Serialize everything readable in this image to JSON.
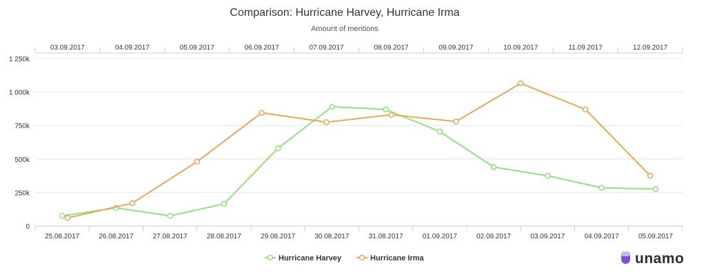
{
  "chart_data": {
    "type": "line",
    "title": "Comparison: Hurricane Harvey, Hurricane Irma",
    "subtitle": "Amount of mentions",
    "xlabel": "",
    "ylabel": "",
    "ylim": [
      0,
      1250000
    ],
    "y_ticks": [
      {
        "value": 0,
        "label": "0"
      },
      {
        "value": 250000,
        "label": "250k"
      },
      {
        "value": 500000,
        "label": "500k"
      },
      {
        "value": 750000,
        "label": "750k"
      },
      {
        "value": 1000000,
        "label": "1 000k"
      },
      {
        "value": 1250000,
        "label": "1 250k"
      }
    ],
    "grid": true,
    "legend_position": "bottom-center",
    "series": [
      {
        "name": "Hurricane Harvey",
        "color": "#90e07e",
        "x": [
          "25.08.2017",
          "26.08.2017",
          "27.08.2017",
          "28.08.2017",
          "29.08.2017",
          "30.08.2017",
          "31.08.2017",
          "01.09.2017",
          "02.09.2017",
          "03.09.2017",
          "04.09.2017",
          "05.09.2017"
        ],
        "values": [
          75000,
          135000,
          75000,
          165000,
          580000,
          890000,
          870000,
          705000,
          440000,
          375000,
          285000,
          275000
        ]
      },
      {
        "name": "Hurricane Irma",
        "color": "#e8a65c",
        "x": [
          "03.09.2017",
          "04.09.2017",
          "05.09.2017",
          "06.09.2017",
          "07.09.2017",
          "08.09.2017",
          "09.09.2017",
          "10.09.2017",
          "11.09.2017",
          "12.09.2017"
        ],
        "values": [
          60000,
          170000,
          480000,
          845000,
          775000,
          830000,
          780000,
          1065000,
          870000,
          375000
        ]
      }
    ]
  },
  "brand": {
    "name": "unamo",
    "color": "#7b52e0"
  }
}
